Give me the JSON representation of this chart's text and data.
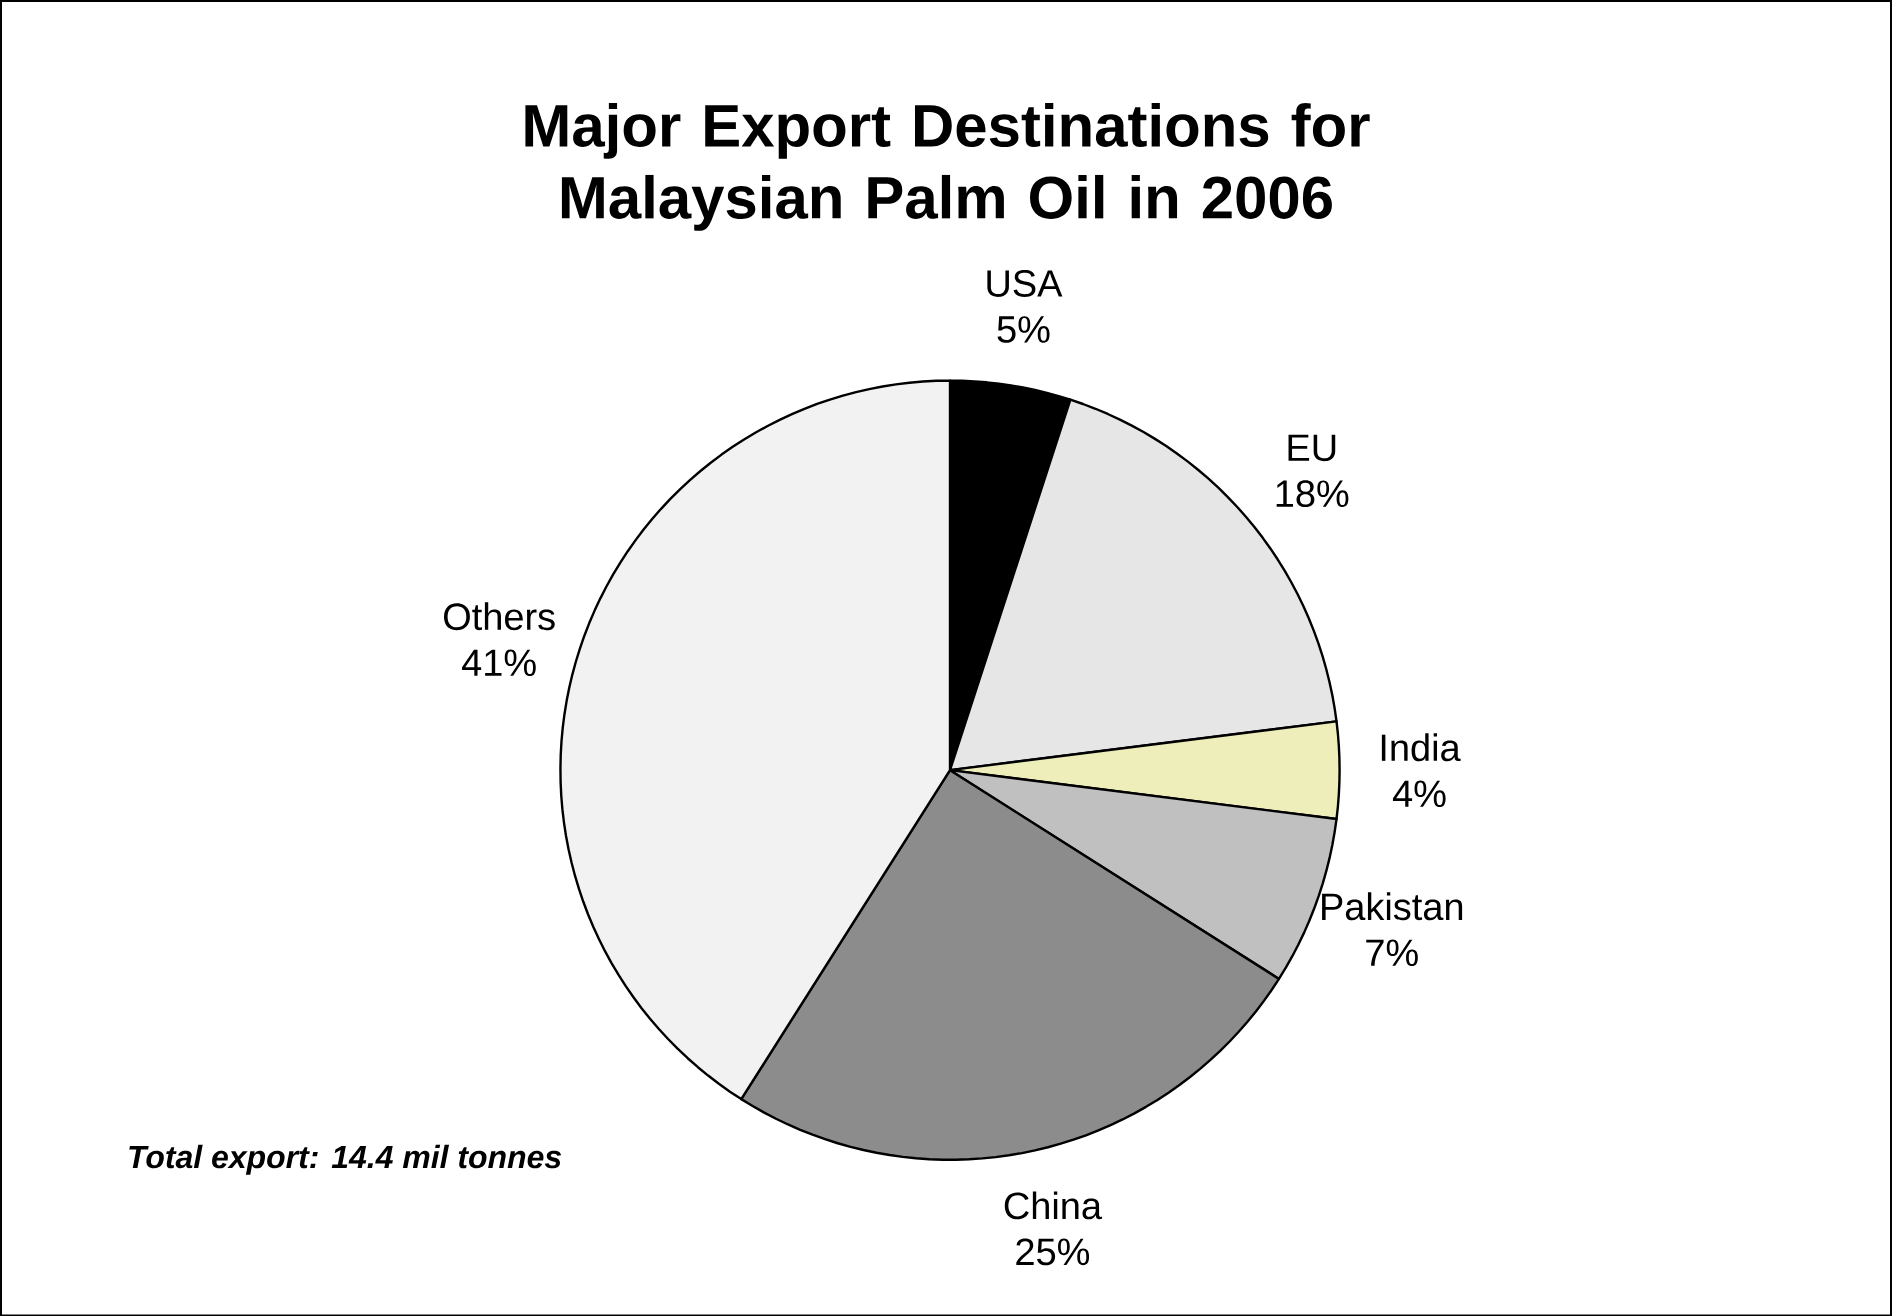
{
  "chart_data": {
    "type": "pie",
    "title": "Major Export Destinations for Malaysian Palm Oil in 2006",
    "categories": [
      "USA",
      "EU",
      "India",
      "Pakistan",
      "China",
      "Others"
    ],
    "values": [
      5,
      18,
      4,
      7,
      25,
      41
    ],
    "value_labels": [
      "5%",
      "18%",
      "4%",
      "7%",
      "25%",
      "41%"
    ],
    "colors": [
      "#000000",
      "#e6e6e6",
      "#eeeebb",
      "#c0c0c0",
      "#8c8c8c",
      "#f2f2f2"
    ],
    "annotations": [
      "Total export: 14.4 mil tonnes"
    ]
  }
}
